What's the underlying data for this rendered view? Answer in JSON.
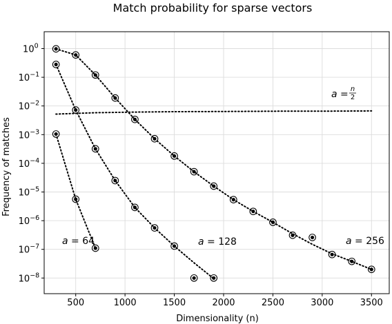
{
  "chart_data": {
    "type": "scatter",
    "title": "Match probability for sparse vectors",
    "xlabel": "Dimensionality (n)",
    "ylabel": "Frequency of matches",
    "xlim": [
      180,
      3680
    ],
    "ylim": [
      1e-08,
      1
    ],
    "y_scale": "log",
    "x_ticks": [
      500,
      1000,
      1500,
      2000,
      2500,
      3000,
      3500
    ],
    "y_ticks": [
      {
        "value": 1,
        "mantissa": "10",
        "exp": "0"
      },
      {
        "value": 0.1,
        "mantissa": "10",
        "exp": "−1"
      },
      {
        "value": 0.01,
        "mantissa": "10",
        "exp": "−2"
      },
      {
        "value": 0.001,
        "mantissa": "10",
        "exp": "−3"
      },
      {
        "value": 0.0001,
        "mantissa": "10",
        "exp": "−4"
      },
      {
        "value": 1e-05,
        "mantissa": "10",
        "exp": "−5"
      },
      {
        "value": 1e-06,
        "mantissa": "10",
        "exp": "−6"
      },
      {
        "value": 1e-07,
        "mantissa": "10",
        "exp": "−7"
      },
      {
        "value": 1e-08,
        "mantissa": "10",
        "exp": "−8"
      }
    ],
    "grid": true,
    "series": [
      {
        "label_var": "a",
        "label_eq": " = ",
        "label_val": "64",
        "style": "dotted-with-ring-markers",
        "points": [
          [
            300,
            0.00105
          ],
          [
            500,
            5.6e-06
          ],
          [
            700,
            1.1e-07
          ]
        ],
        "curve": [
          [
            300,
            0.00105
          ],
          [
            500,
            5.6e-06
          ],
          [
            700,
            1.1e-07
          ]
        ]
      },
      {
        "label_var": "a",
        "label_eq": " = ",
        "label_val": "128",
        "style": "dotted-with-ring-markers",
        "points": [
          [
            300,
            0.28
          ],
          [
            500,
            0.0072
          ],
          [
            700,
            0.00032
          ],
          [
            900,
            2.5e-05
          ],
          [
            1100,
            2.9e-06
          ],
          [
            1300,
            5.6e-07
          ],
          [
            1500,
            1.3e-07
          ],
          [
            1700,
            1e-08
          ],
          [
            1900,
            1e-08
          ]
        ],
        "curve": [
          [
            300,
            0.28
          ],
          [
            500,
            0.0072
          ],
          [
            700,
            0.00032
          ],
          [
            900,
            2.5e-05
          ],
          [
            1100,
            2.9e-06
          ],
          [
            1300,
            5.6e-07
          ],
          [
            1500,
            1.3e-07
          ],
          [
            1700,
            3.4e-08
          ],
          [
            1900,
            9.5e-09
          ]
        ]
      },
      {
        "label_var": "a",
        "label_eq": " = ",
        "label_val": "256",
        "style": "dotted-with-ring-markers",
        "points": [
          [
            300,
            0.98
          ],
          [
            500,
            0.6
          ],
          [
            700,
            0.12
          ],
          [
            900,
            0.019
          ],
          [
            1100,
            0.0034
          ],
          [
            1300,
            0.00072
          ],
          [
            1500,
            0.00018
          ],
          [
            1700,
            5.1e-05
          ],
          [
            1900,
            1.6e-05
          ],
          [
            2100,
            5.4e-06
          ],
          [
            2300,
            2.1e-06
          ],
          [
            2500,
            8.8e-07
          ],
          [
            2700,
            3.1e-07
          ],
          [
            2900,
            2.6e-07
          ],
          [
            3100,
            6.6e-08
          ],
          [
            3300,
            3.8e-08
          ],
          [
            3500,
            2e-08
          ]
        ],
        "curve": [
          [
            300,
            0.98
          ],
          [
            500,
            0.6
          ],
          [
            700,
            0.12
          ],
          [
            900,
            0.019
          ],
          [
            1100,
            0.0034
          ],
          [
            1300,
            0.00072
          ],
          [
            1500,
            0.00018
          ],
          [
            1700,
            5.1e-05
          ],
          [
            1900,
            1.6e-05
          ],
          [
            2100,
            5.4e-06
          ],
          [
            2300,
            2.1e-06
          ],
          [
            2500,
            8.8e-07
          ],
          [
            2700,
            3.5e-07
          ],
          [
            2900,
            1.5e-07
          ],
          [
            3100,
            7e-08
          ],
          [
            3300,
            3.8e-08
          ],
          [
            3500,
            2e-08
          ]
        ]
      },
      {
        "label_var": "a",
        "label_eq": " = ",
        "label_val": "n/2",
        "label_num": "n",
        "label_den": "2",
        "style": "dotted",
        "points": [],
        "curve": [
          [
            300,
            0.0052
          ],
          [
            700,
            0.0058
          ],
          [
            1100,
            0.0061
          ],
          [
            1500,
            0.0063
          ],
          [
            1900,
            0.0064
          ],
          [
            2300,
            0.0065
          ],
          [
            2700,
            0.0066
          ],
          [
            3100,
            0.0066
          ],
          [
            3500,
            0.0067
          ]
        ]
      }
    ]
  }
}
